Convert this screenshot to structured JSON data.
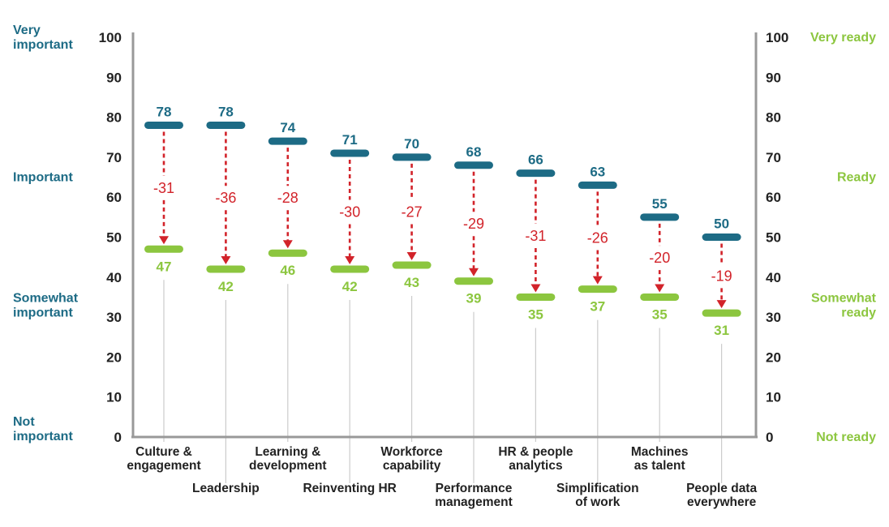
{
  "colors": {
    "importance": "#1d6b85",
    "readiness": "#8cc63f",
    "gap": "#d2232a",
    "axis": "#999999",
    "stem": "#cccccc"
  },
  "left_axis": {
    "ticks": [
      "0",
      "10",
      "20",
      "30",
      "40",
      "50",
      "60",
      "70",
      "80",
      "90",
      "100"
    ],
    "labels": [
      {
        "value": 100,
        "lines": [
          "Very",
          "important"
        ]
      },
      {
        "value": 65,
        "lines": [
          "Important"
        ]
      },
      {
        "value": 33,
        "lines": [
          "Somewhat",
          "important"
        ]
      },
      {
        "value": 2,
        "lines": [
          "Not",
          "important"
        ]
      }
    ]
  },
  "right_axis": {
    "ticks": [
      "0",
      "10",
      "20",
      "30",
      "40",
      "50",
      "60",
      "70",
      "80",
      "90",
      "100"
    ],
    "labels": [
      {
        "value": 100,
        "lines": [
          "Very ready"
        ]
      },
      {
        "value": 65,
        "lines": [
          "Ready"
        ]
      },
      {
        "value": 33,
        "lines": [
          "Somewhat",
          "ready"
        ]
      },
      {
        "value": 0,
        "lines": [
          "Not ready"
        ]
      }
    ]
  },
  "chart_data": {
    "type": "dumbbell",
    "ylim": [
      0,
      100
    ],
    "categories": [
      {
        "lines": [
          "Culture &",
          "engagement"
        ],
        "row": "top"
      },
      {
        "lines": [
          "Leadership"
        ],
        "row": "bottom"
      },
      {
        "lines": [
          "Learning &",
          "development"
        ],
        "row": "top"
      },
      {
        "lines": [
          "Reinventing HR"
        ],
        "row": "bottom"
      },
      {
        "lines": [
          "Workforce",
          "capability"
        ],
        "row": "top"
      },
      {
        "lines": [
          "Performance",
          "management"
        ],
        "row": "bottom"
      },
      {
        "lines": [
          "HR & people",
          "analytics"
        ],
        "row": "top"
      },
      {
        "lines": [
          "Simplification",
          "of work"
        ],
        "row": "bottom"
      },
      {
        "lines": [
          "Machines",
          "as talent"
        ],
        "row": "top"
      },
      {
        "lines": [
          "People data",
          "everywhere"
        ],
        "row": "bottom"
      }
    ],
    "series": [
      {
        "values": [
          78,
          78,
          74,
          71,
          70,
          68,
          66,
          63,
          55,
          50
        ]
      },
      {
        "values": [
          47,
          42,
          46,
          42,
          43,
          39,
          35,
          37,
          35,
          31
        ]
      }
    ],
    "value_labels": {
      "importance": [
        "78",
        "78",
        "74",
        "71",
        "70",
        "68",
        "66",
        "63",
        "55",
        "50"
      ],
      "readiness": [
        "47",
        "42",
        "46",
        "42",
        "43",
        "39",
        "35",
        "37",
        "35",
        "31"
      ],
      "gap": [
        "-31",
        "-36",
        "-28",
        "-30",
        "-27",
        "-29",
        "-31",
        "-26",
        "-20",
        "-19"
      ]
    }
  }
}
